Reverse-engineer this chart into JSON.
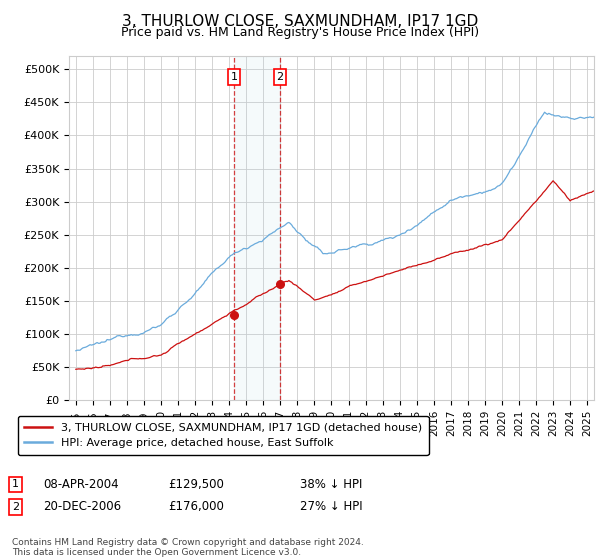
{
  "title": "3, THURLOW CLOSE, SAXMUNDHAM, IP17 1GD",
  "subtitle": "Price paid vs. HM Land Registry's House Price Index (HPI)",
  "title_fontsize": 11,
  "subtitle_fontsize": 9,
  "hpi_color": "#6aabdc",
  "price_color": "#cc1111",
  "background_color": "#ffffff",
  "grid_color": "#cccccc",
  "legend_label_price": "3, THURLOW CLOSE, SAXMUNDHAM, IP17 1GD (detached house)",
  "legend_label_hpi": "HPI: Average price, detached house, East Suffolk",
  "t1_year_float": 2004.27,
  "t1_price": 129500,
  "t2_year_float": 2006.97,
  "t2_price": 176000,
  "transaction1_date": "08-APR-2004",
  "transaction1_pricef": "£129,500",
  "transaction1_pct": "38% ↓ HPI",
  "transaction2_date": "20-DEC-2006",
  "transaction2_pricef": "£176,000",
  "transaction2_pct": "27% ↓ HPI",
  "footer": "Contains HM Land Registry data © Crown copyright and database right 2024.\nThis data is licensed under the Open Government Licence v3.0.",
  "ylim": [
    0,
    520000
  ],
  "yticks": [
    0,
    50000,
    100000,
    150000,
    200000,
    250000,
    300000,
    350000,
    400000,
    450000,
    500000
  ],
  "ytick_labels": [
    "£0",
    "£50K",
    "£100K",
    "£150K",
    "£200K",
    "£250K",
    "£300K",
    "£350K",
    "£400K",
    "£450K",
    "£500K"
  ],
  "xlim_left": 1994.6,
  "xlim_right": 2025.4
}
